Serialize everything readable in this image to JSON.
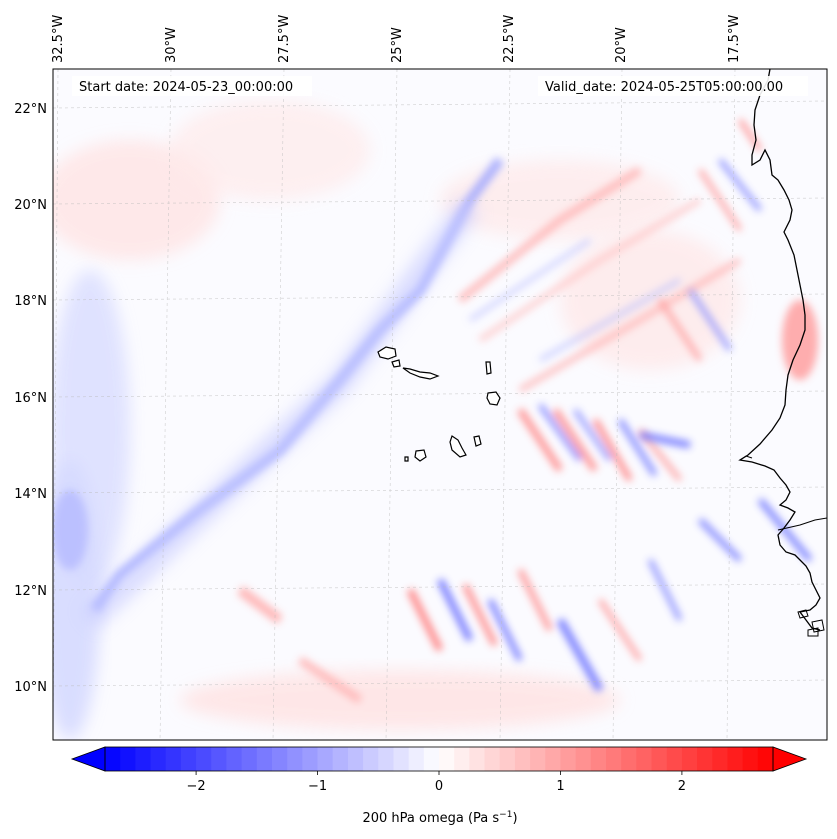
{
  "map": {
    "projection_lon_labels": [
      "32.5°W",
      "30°W",
      "27.5°W",
      "25°W",
      "22.5°W",
      "20°W",
      "17.5°W"
    ],
    "lat_labels": [
      "22°N",
      "20°N",
      "18°N",
      "16°N",
      "14°N",
      "12°N",
      "10°N"
    ],
    "start_date": "Start date: 2024-05-23_00:00:00",
    "valid_date": "Valid_date: 2024-05-25T05:00:00.00",
    "coastline_color": "#000000",
    "gridline_color": "#bbbbbb"
  },
  "colorbar": {
    "label": "200 hPa omega (Pa s",
    "label_sup": "−1",
    "label_close": ")",
    "ticks": [
      "−2",
      "−1",
      "0",
      "1",
      "2"
    ],
    "tick_values": [
      -2,
      -1,
      0,
      1,
      2
    ],
    "range": [
      -2.75,
      2.75
    ],
    "cmap": "bwr",
    "low_color": "#0000ff",
    "mid_color": "#ffffff",
    "high_color": "#ff0000"
  }
}
